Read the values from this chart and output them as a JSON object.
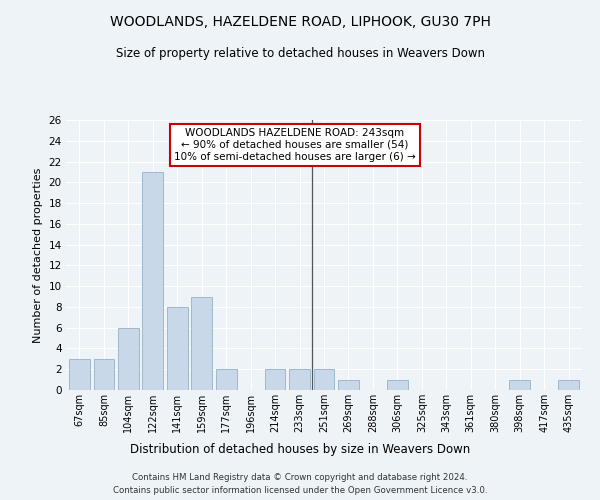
{
  "title1": "WOODLANDS, HAZELDENE ROAD, LIPHOOK, GU30 7PH",
  "title2": "Size of property relative to detached houses in Weavers Down",
  "xlabel": "Distribution of detached houses by size in Weavers Down",
  "ylabel": "Number of detached properties",
  "categories": [
    "67sqm",
    "85sqm",
    "104sqm",
    "122sqm",
    "141sqm",
    "159sqm",
    "177sqm",
    "196sqm",
    "214sqm",
    "233sqm",
    "251sqm",
    "269sqm",
    "288sqm",
    "306sqm",
    "325sqm",
    "343sqm",
    "361sqm",
    "380sqm",
    "398sqm",
    "417sqm",
    "435sqm"
  ],
  "values": [
    3,
    3,
    6,
    21,
    8,
    9,
    2,
    0,
    2,
    2,
    2,
    1,
    0,
    1,
    0,
    0,
    0,
    0,
    1,
    0,
    1
  ],
  "bar_color": "#c8d8e8",
  "bar_edge_color": "#a0b8cc",
  "annotation_title": "WOODLANDS HAZELDENE ROAD: 243sqm",
  "annotation_line1": "← 90% of detached houses are smaller (54)",
  "annotation_line2": "10% of semi-detached houses are larger (6) →",
  "annotation_box_color": "#ffffff",
  "annotation_border_color": "#cc0000",
  "ylim": [
    0,
    26
  ],
  "yticks": [
    0,
    2,
    4,
    6,
    8,
    10,
    12,
    14,
    16,
    18,
    20,
    22,
    24,
    26
  ],
  "background_color": "#eef3f8",
  "grid_color": "#ffffff",
  "footer1": "Contains HM Land Registry data © Crown copyright and database right 2024.",
  "footer2": "Contains public sector information licensed under the Open Government Licence v3.0."
}
